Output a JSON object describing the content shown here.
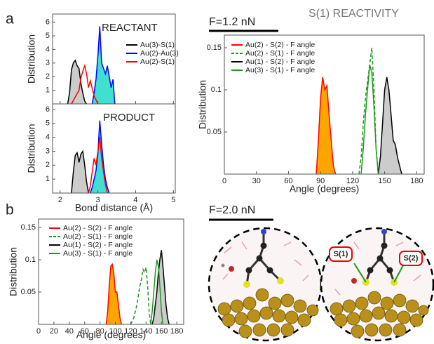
{
  "panels": [
    "a",
    "b"
  ],
  "headings": {
    "force_a": "F=1.2 nN",
    "reactivity": "S(1) REACTIVITY",
    "force_b": "F=2.0 nN"
  },
  "image_labels": [
    "S(1)",
    "S(2)"
  ],
  "chart_data": [
    {
      "type": "area",
      "annotation": "REACTANT",
      "ylabel": "Distribution",
      "xlim": [
        1.8,
        5.05
      ],
      "xticks": [
        2,
        3,
        4,
        5
      ],
      "ylim": [
        0,
        6.6
      ],
      "yticks": [
        1,
        2,
        3,
        4,
        5,
        6
      ],
      "series": [
        {
          "name": "Au(3)-S(1)",
          "color": "#000000",
          "fill": "#cccccc",
          "x": [
            2.2,
            2.25,
            2.3,
            2.35,
            2.4,
            2.45,
            2.5,
            2.55,
            2.6,
            2.65,
            2.7
          ],
          "values": [
            0,
            0.8,
            2.5,
            3.0,
            3.2,
            2.8,
            2.6,
            1.5,
            0.8,
            0.2,
            0
          ]
        },
        {
          "name": "Au(2)-Au(3)",
          "color": "#0000ff",
          "fill": "#40e0d0",
          "x": [
            2.85,
            2.9,
            2.95,
            3.0,
            3.05,
            3.1,
            3.15,
            3.2,
            3.25,
            3.3,
            3.35,
            3.4,
            3.45
          ],
          "values": [
            0,
            0.8,
            1.8,
            3.5,
            5.7,
            3.0,
            2.6,
            2.2,
            2.8,
            2.0,
            1.2,
            1.8,
            0
          ]
        },
        {
          "name": "Au(2)-S(1)",
          "color": "#ff0000",
          "x": [
            2.3,
            2.4,
            2.5,
            2.55,
            2.6,
            2.65,
            2.7,
            2.75,
            2.8,
            2.9,
            3.0
          ],
          "values": [
            0,
            0.5,
            1.0,
            1.9,
            2.4,
            2.8,
            2.2,
            1.2,
            1.7,
            0.6,
            0
          ]
        }
      ]
    },
    {
      "type": "area",
      "annotation": "PRODUCT",
      "ylabel": "Distribution",
      "xlabel": "Bond distance (Å)",
      "xlim": [
        1.8,
        5.05
      ],
      "xticks": [
        2,
        3,
        4,
        5
      ],
      "ylim": [
        0,
        6.4
      ],
      "yticks": [
        1,
        2,
        3,
        4,
        5,
        6
      ],
      "series": [
        {
          "color": "#000000",
          "fill": "#cccccc",
          "x": [
            2.3,
            2.35,
            2.4,
            2.45,
            2.5,
            2.55,
            2.6,
            2.65,
            2.7,
            2.75
          ],
          "values": [
            0,
            1.5,
            2.7,
            2.9,
            2.2,
            2.8,
            3.0,
            2.0,
            0.8,
            0
          ]
        },
        {
          "color": "#0000ff",
          "fill": "#40e0d0",
          "x": [
            2.8,
            2.85,
            2.9,
            2.95,
            3.0,
            3.05,
            3.1,
            3.15,
            3.2,
            3.25,
            3.3
          ],
          "values": [
            0,
            0.4,
            1.0,
            1.6,
            2.8,
            5.2,
            3.5,
            2.0,
            1.0,
            0.4,
            0
          ]
        },
        {
          "color": "#ff0000",
          "x": [
            2.75,
            2.8,
            2.85,
            2.9,
            2.95,
            3.0,
            3.05,
            3.1,
            3.15,
            3.2,
            3.25
          ],
          "values": [
            0,
            0.5,
            1.5,
            2.5,
            2.0,
            3.0,
            4.0,
            2.5,
            1.5,
            0.6,
            0
          ]
        }
      ]
    },
    {
      "type": "area",
      "ylabel": "Distribution",
      "xlabel": "Angle (degrees)",
      "xlim": [
        0,
        187
      ],
      "xticks": [
        0,
        30,
        60,
        90,
        120,
        150,
        180
      ],
      "ylim": [
        0,
        0.165
      ],
      "yticks": [
        0.05,
        0.1,
        0.15
      ],
      "series": [
        {
          "name": "Au(2) - S(2) - F angle",
          "color": "#ff0000",
          "fill": "#ffa500",
          "x": [
            86,
            88,
            90,
            92,
            94,
            96,
            98,
            100,
            102,
            104
          ],
          "values": [
            0,
            0.04,
            0.09,
            0.115,
            0.1,
            0.105,
            0.07,
            0.04,
            0.01,
            0
          ]
        },
        {
          "name": "Au(2) - S(1) - F angle",
          "color": "#1a9a1a",
          "dash": true,
          "x": [
            126,
            128,
            130,
            132,
            134,
            136,
            138,
            140,
            142,
            144
          ],
          "values": [
            0,
            0.02,
            0.06,
            0.09,
            0.11,
            0.13,
            0.15,
            0.1,
            0.03,
            0
          ]
        },
        {
          "name": "Au(1) - S(2) - F angle",
          "color": "#000000",
          "fill": "#cccccc",
          "x": [
            144,
            146,
            148,
            150,
            152,
            154,
            156,
            158,
            160,
            162,
            164,
            166
          ],
          "values": [
            0,
            0.02,
            0.06,
            0.1,
            0.115,
            0.1,
            0.07,
            0.04,
            0.035,
            0.02,
            0.01,
            0
          ]
        },
        {
          "name": "Au(3) - S(1) - F angle",
          "color": "#1a9a1a",
          "x": [
            128,
            130,
            132,
            134,
            136,
            138,
            140,
            142,
            144
          ],
          "values": [
            0,
            0.03,
            0.07,
            0.1,
            0.13,
            0.12,
            0.08,
            0.03,
            0
          ]
        }
      ]
    },
    {
      "type": "area",
      "ylabel": "Distribution",
      "xlabel": "Angle (degrees)",
      "xlim": [
        0,
        189
      ],
      "xticks": [
        0,
        20,
        40,
        60,
        80,
        100,
        120,
        140,
        160,
        180
      ],
      "ylim": [
        0,
        0.163
      ],
      "yticks": [
        0.05,
        0.1,
        0.15
      ],
      "series": [
        {
          "name": "Au(2) - S(2) - F angle",
          "color": "#ff0000",
          "fill": "#ffa500",
          "x": [
            88,
            90,
            92,
            94,
            96,
            98,
            100,
            102,
            104,
            106,
            108
          ],
          "values": [
            0,
            0.02,
            0.06,
            0.09,
            0.093,
            0.08,
            0.05,
            0.05,
            0.03,
            0.01,
            0
          ]
        },
        {
          "name": "Au(2) - S(1) - F angle",
          "color": "#1a9a1a",
          "dash": true,
          "x": [
            120,
            124,
            128,
            132,
            134,
            136,
            138,
            140,
            142,
            144,
            146
          ],
          "values": [
            0,
            0.01,
            0.03,
            0.06,
            0.07,
            0.085,
            0.08,
            0.088,
            0.06,
            0.02,
            0
          ]
        },
        {
          "name": "Au(1) - S(2) - F angle",
          "color": "#000000",
          "fill": "#cccccc",
          "x": [
            148,
            150,
            152,
            154,
            156,
            158,
            160,
            162,
            164,
            166,
            168,
            170
          ],
          "values": [
            0,
            0.01,
            0.03,
            0.05,
            0.08,
            0.1,
            0.115,
            0.09,
            0.06,
            0.03,
            0.01,
            0
          ]
        },
        {
          "name": "Au(3) - S(1) - F angle",
          "color": "#1a9a1a",
          "x": [
            146,
            148,
            150,
            152,
            154,
            156,
            158,
            160,
            162
          ],
          "values": [
            0,
            0.02,
            0.05,
            0.08,
            0.1,
            0.09,
            0.06,
            0.02,
            0
          ]
        }
      ]
    }
  ]
}
